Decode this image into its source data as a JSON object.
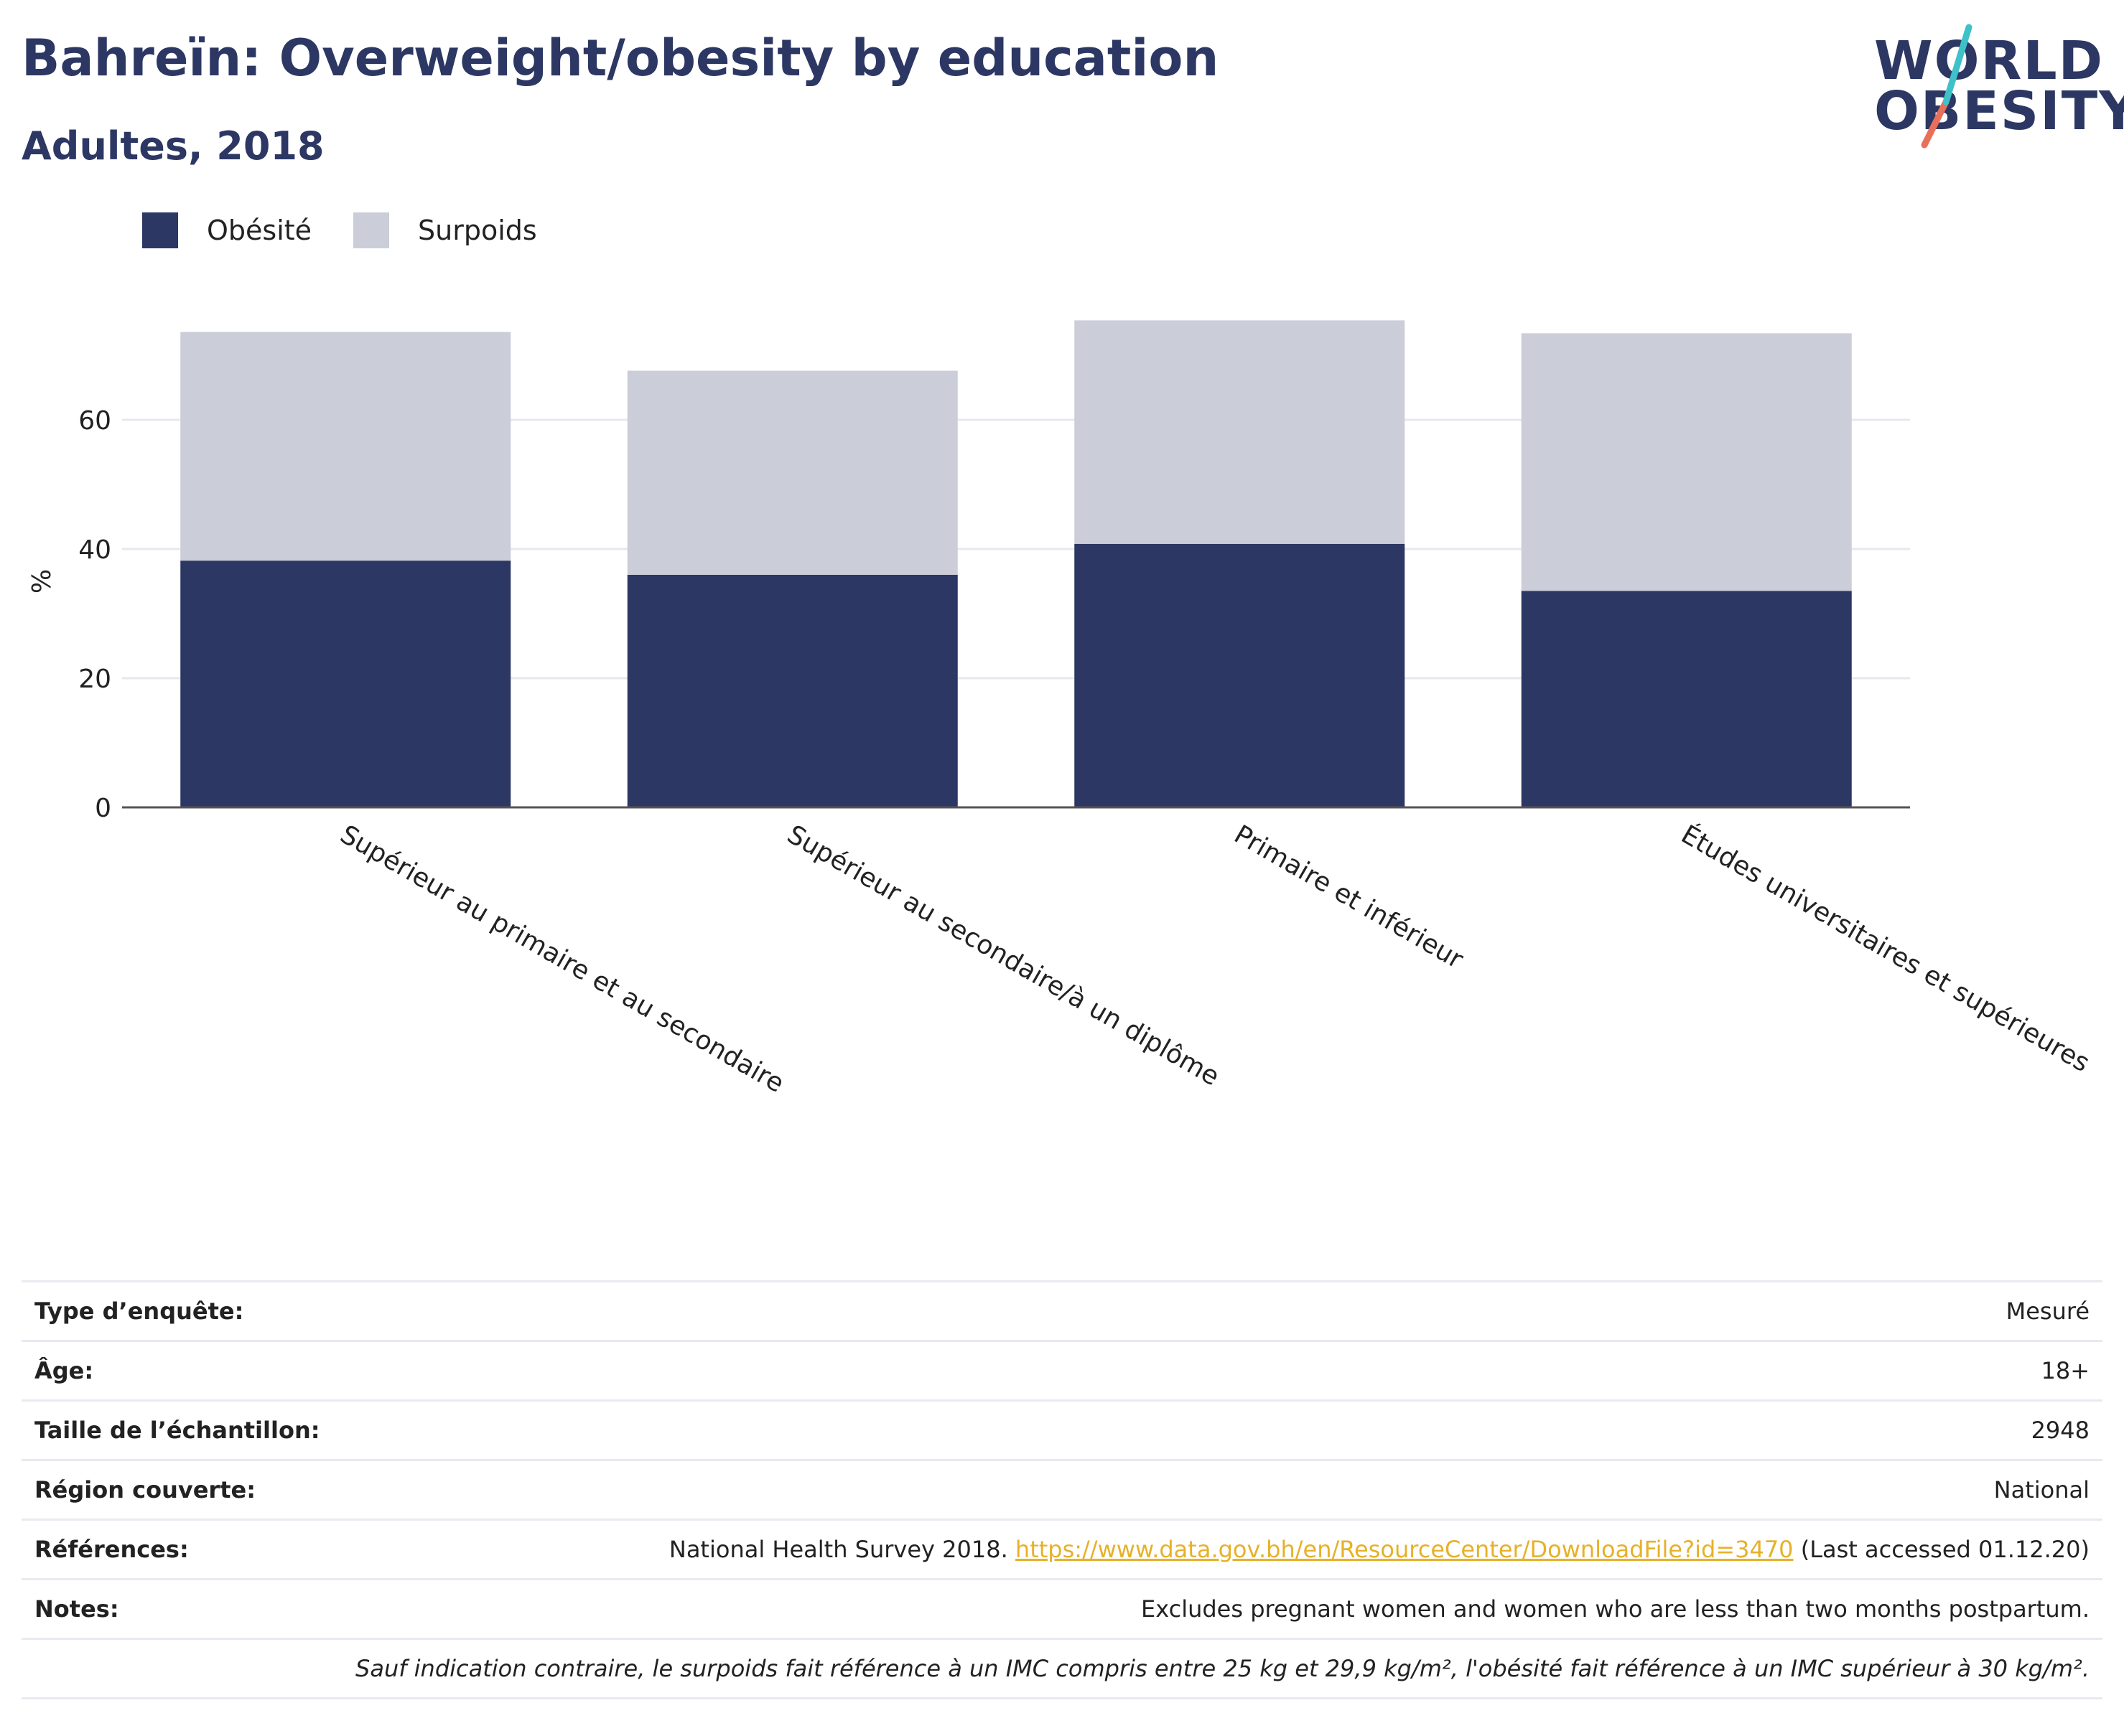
{
  "title": "Bahreïn: Overweight/obesity by education",
  "subtitle": "Adultes, 2018",
  "logo": {
    "line1": "WORLD",
    "line2": "OBESITY"
  },
  "colors": {
    "obesity": "#2c3763",
    "overweight": "#cbcdd8",
    "slash_teal": "#3fc1c9",
    "slash_coral": "#e8705a",
    "link": "#e6b12a"
  },
  "legend": [
    {
      "label": "Obésité",
      "color": "#2c3763"
    },
    {
      "label": "Surpoids",
      "color": "#cbcdd8"
    }
  ],
  "chart_data": {
    "type": "bar",
    "stacked": true,
    "categories": [
      "Supérieur au primaire et au secondaire",
      "Supérieur au secondaire/à un diplôme",
      "Primaire et inférieur",
      "Études universitaires et supérieures"
    ],
    "series": [
      {
        "name": "Obésité",
        "values": [
          38.2,
          36.0,
          40.8,
          33.5
        ]
      },
      {
        "name": "Surpoids",
        "values": [
          35.4,
          31.6,
          34.6,
          39.9
        ]
      }
    ],
    "ylabel": "%",
    "ylim": [
      0,
      80
    ],
    "yticks": [
      0,
      20,
      40,
      60
    ],
    "grid": true,
    "legend_position": "top-left"
  },
  "info": {
    "survey_type": {
      "key": "Type d’enquête:",
      "value": "Mesuré"
    },
    "age": {
      "key": "Âge:",
      "value": "18+"
    },
    "sample_size": {
      "key": "Taille de l’échantillon:",
      "value": "2948"
    },
    "region": {
      "key": "Région couverte:",
      "value": "National"
    },
    "references": {
      "key": "Références:",
      "prefix": "National Health Survey 2018.",
      "link": "https://www.data.gov.bh/en/ResourceCenter/DownloadFile?id=3470",
      "suffix": "(Last accessed 01.12.20)"
    },
    "notes": {
      "key": "Notes:",
      "value": "Excludes pregnant women and women who are less than two months postpartum."
    },
    "footnote": "Sauf indication contraire, le surpoids fait référence à un IMC compris entre 25 kg et 29,9 kg/m², l'obésité fait référence à un IMC supérieur à 30 kg/m²."
  }
}
